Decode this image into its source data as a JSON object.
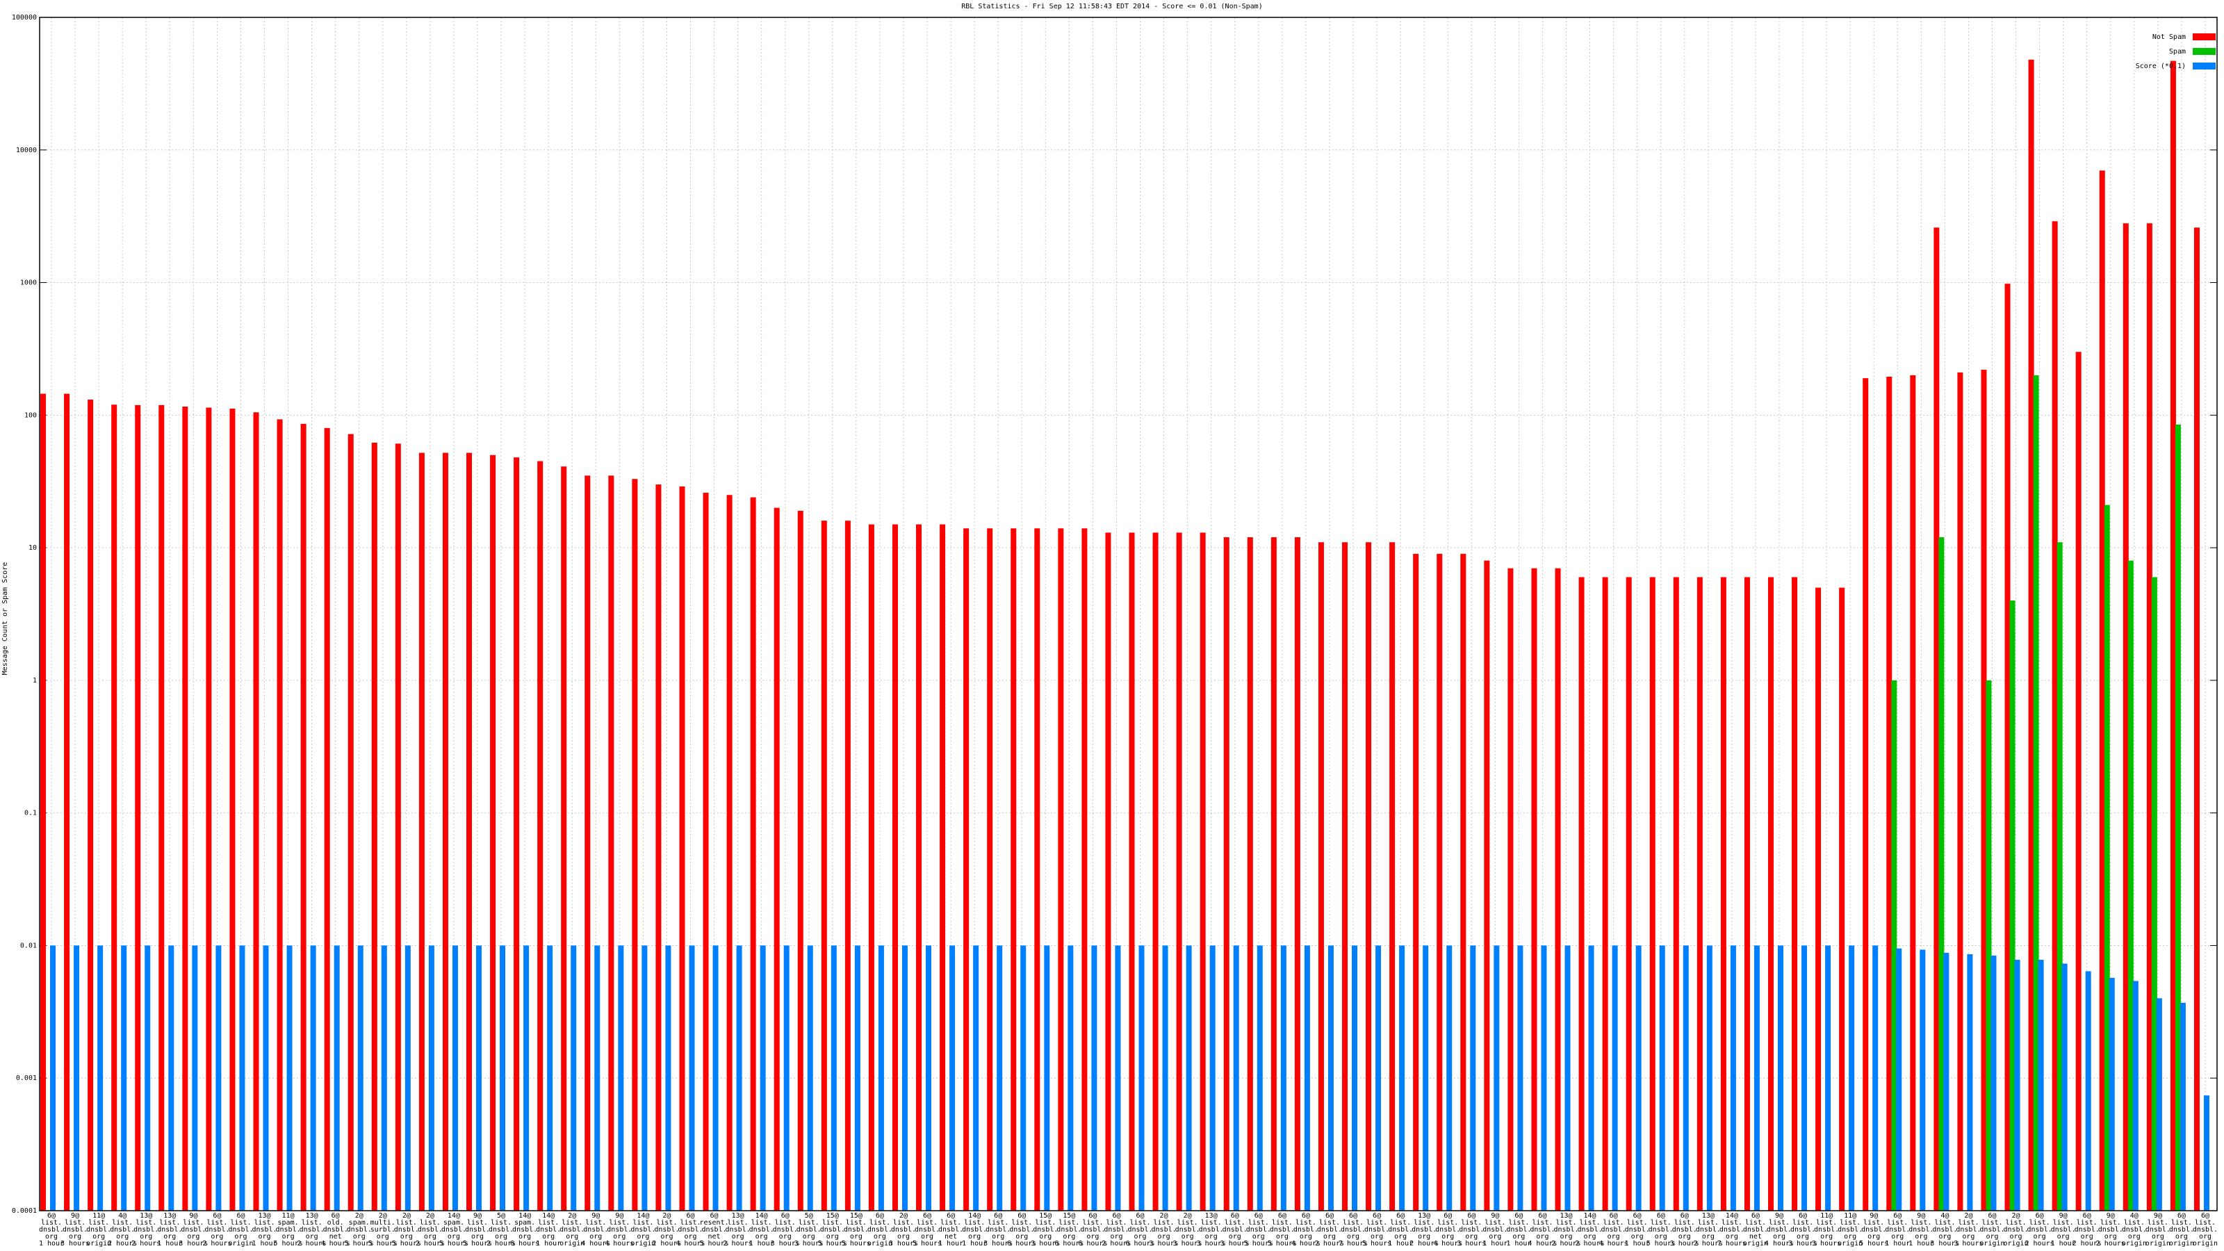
{
  "chart_data": {
    "type": "bar",
    "title": "RBL Statistics - Fri Sep 12 11:58:43 EDT 2014 - Score <= 0.01 (Non-Spam)",
    "y_label": "Message Count or Spam Score",
    "log_scale": true,
    "grid": true,
    "legend": "top-right",
    "ylim": [
      0.0001,
      100000
    ],
    "yticks": [
      0.0001,
      0.001,
      0.01,
      0.1,
      1,
      10,
      100,
      1000,
      10000,
      100000
    ],
    "categories": [
      "6@\nlist.\ndnsbl.\norg\n1 hour",
      "9@\nlist.\ndnsbl.\norg\n3 hours",
      "11@\nlist.\ndnsbl.\norg\norigin",
      "4@\nlist.\ndnsbl.\norg\n2 hours",
      "13@\nlist.\ndnsbl.\norg\n2 hours",
      "13@\nlist.\ndnsbl.\norg\n1 hour",
      "9@\nlist.\ndnsbl.\norg\n3 hours",
      "6@\nlist.\ndnsbl.\norg\n2 hours",
      "6@\nlist.\ndnsbl.\norg\norigin",
      "13@\nlist.\ndnsbl.\norg\n1 hour",
      "11@\nspam.\ndnsbl.\norg\n5 hours",
      "13@\nlist.\ndnsbl.\norg\n2 hours",
      "6@\nold.\ndnsbl.\nnet\n4 hours",
      "2@\nspam.\ndnsbl.\norg\n5 hours",
      "2@\nmulti.\nsurbl.\norg\n5 hours",
      "2@\nlist.\ndnsbl.\norg\n5 hours",
      "2@\nlist.\ndnsbl.\norg\n2 hours",
      "14@\nspam.\ndnsbl.\norg\n5 hours",
      "9@\nlist.\ndnsbl.\norg\n5 hours",
      "5@\nlist.\ndnsbl.\norg\n2 hours",
      "14@\nspam.\ndnsbl.\norg\n6 hours",
      "14@\nlist.\ndnsbl.\norg\n1 hour",
      "2@\nlist.\ndnsbl.\norg\norigin",
      "9@\nlist.\ndnsbl.\norg\n4 hours",
      "9@\nlist.\ndnsbl.\norg\n4 hours",
      "14@\nlist.\ndnsbl.\norg\norigin",
      "2@\nlist.\ndnsbl.\norg\n2 hours",
      "6@\nlist.\ndnsbl.\norg\n4 hours",
      "6@\nresent.\ndnsbl.\nnet\n5 hours",
      "13@\nlist.\ndnsbl.\norg\n2 hours",
      "14@\nlist.\ndnsbl.\norg\n1 hour",
      "6@\nlist.\ndnsbl.\norg\n3 hours",
      "5@\nlist.\ndnsbl.\norg\n3 hours",
      "15@\nlist.\ndnsbl.\norg\n5 hours",
      "15@\nlist.\ndnsbl.\norg\n5 hours",
      "6@\nlist.\ndnsbl.\norg\norigin",
      "2@\nlist.\ndnsbl.\norg\n3 hours",
      "6@\nlist.\ndnsbl.\norg\n5 hours",
      "6@\nlist.\ndnsbl.\nnet\n1 hour",
      "14@\nlist.\ndnsbl.\norg\n1 hour",
      "6@\nlist.\ndnsbl.\norg\n3 hours",
      "6@\nlist.\ndnsbl.\norg\n6 hours",
      "15@\nlist.\ndnsbl.\norg\n3 hours",
      "15@\nlist.\ndnsbl.\norg\n6 hours",
      "6@\nlist.\ndnsbl.\norg\n6 hours",
      "6@\nlist.\ndnsbl.\norg\n2 hours",
      "6@\nlist.\ndnsbl.\norg\n6 hours",
      "2@\nlist.\ndnsbl.\norg\n3 hours",
      "2@\nlist.\ndnsbl.\norg\n3 hours",
      "13@\nlist.\ndnsbl.\norg\n3 hours",
      "6@\nlist.\ndnsbl.\norg\n3 hours",
      "6@\nlist.\ndnsbl.\norg\n5 hours",
      "6@\nlist.\ndnsbl.\norg\n5 hours",
      "6@\nlist.\ndnsbl.\norg\n4 hours",
      "6@\nlist.\ndnsbl.\norg\n2 hours",
      "6@\nlist.\ndnsbl.\norg\n7 hours",
      "6@\nlist.\ndnsbl.\norg\n5 hours",
      "6@\nlist.\ndnsbl.\norg\n1 hour",
      "13@\nlist.\ndnsbl.\norg\n2 hours",
      "6@\nlist.\ndnsbl.\norg\n4 hours",
      "6@\nlist.\ndnsbl.\norg\n3 hours",
      "9@\nlist.\ndnsbl.\norg\n1 hour",
      "6@\nlist.\ndnsbl.\norg\n1 hour",
      "6@\nlist.\ndnsbl.\norg\n4 hours",
      "13@\nlist.\ndnsbl.\norg\n2 hours",
      "14@\nlist.\ndnsbl.\norg\n2 hours",
      "6@\nlist.\ndnsbl.\norg\n4 hours",
      "6@\nlist.\ndnsbl.\norg\n1 hour",
      "6@\nlist.\ndnsbl.\norg\n5 hours",
      "6@\nlist.\ndnsbl.\norg\n3 hours",
      "13@\nlist.\ndnsbl.\norg\n2 hours",
      "14@\nlist.\ndnsbl.\norg\n7 hours",
      "6@\nlist.\ndnsbl.\nnet\norigin",
      "9@\nlist.\ndnsbl.\norg\n4 hours",
      "6@\nlist.\ndnsbl.\norg\n3 hours",
      "11@\nlist.\ndnsbl.\norg\n3 hours",
      "11@\nlist.\ndnsbl.\norg\norigin",
      "9@\nlist.\ndnsbl.\norg\n5 hours",
      "6@\nlist.\ndnsbl.\norg\n1 hour",
      "9@\nlist.\ndnsbl.\norg\n1 hour",
      "4@\nlist.\ndnsbl.\norg\n3 hours",
      "2@\nlist.\ndnsbl.\norg\n3 hours",
      "6@\nlist.\ndnsbl.\norg\norigin",
      "2@\nlist.\ndnsbl.\norg\norigin",
      "6@\nlist.\ndnsbl.\norg\n2 hours",
      "9@\nlist.\ndnsbl.\norg\n1 hour",
      "6@\nlist.\ndnsbl.\norg\n2 hours",
      "9@\nlist.\ndnsbl.\norg\n2 hours",
      "4@\nlist.\ndnsbl.\norg\norigin",
      "9@\nlist.\ndnsbl.\norg\norigin",
      "6@\nlist.\ndnsbl.\norg\norigin",
      "6@\nlist.\ndnsbl.\norg\norigin"
    ],
    "series": [
      {
        "name": "Not Spam",
        "color": "#ff0000",
        "values": [
          145,
          145,
          131,
          120,
          119,
          119,
          116,
          114,
          112,
          105,
          93,
          86,
          80,
          72,
          62,
          61,
          52,
          52,
          52,
          50,
          48,
          45,
          41,
          35,
          35,
          33,
          30,
          29,
          26,
          25,
          24,
          20,
          19,
          16,
          16,
          15,
          15,
          15,
          15,
          14,
          14,
          14,
          14,
          14,
          14,
          13,
          13,
          13,
          13,
          13,
          12,
          12,
          12,
          12,
          11,
          11,
          11,
          11,
          9,
          9,
          9,
          8,
          7,
          7,
          7,
          6,
          6,
          6,
          6,
          6,
          6,
          6,
          6,
          6,
          6,
          5,
          5,
          190,
          195,
          200,
          2600,
          210,
          220,
          980,
          48000,
          2900,
          300,
          7000,
          2800,
          2800,
          47000,
          2600
        ]
      },
      {
        "name": "Spam",
        "color": "#00c000",
        "values": [
          null,
          null,
          null,
          null,
          null,
          null,
          null,
          null,
          null,
          null,
          null,
          null,
          null,
          null,
          null,
          null,
          null,
          null,
          null,
          null,
          null,
          null,
          null,
          null,
          null,
          null,
          null,
          null,
          null,
          null,
          null,
          null,
          null,
          null,
          null,
          null,
          null,
          null,
          null,
          null,
          null,
          null,
          null,
          null,
          null,
          null,
          null,
          null,
          null,
          null,
          null,
          null,
          null,
          null,
          null,
          null,
          null,
          null,
          null,
          null,
          null,
          null,
          null,
          null,
          null,
          null,
          null,
          null,
          null,
          null,
          null,
          null,
          null,
          null,
          null,
          null,
          null,
          null,
          1,
          null,
          12,
          null,
          1,
          4,
          200,
          11,
          null,
          21,
          8,
          6,
          85,
          null
        ]
      },
      {
        "name": "Score (*0.1)",
        "color": "#0080ff",
        "values": [
          0.01,
          0.01,
          0.01,
          0.01,
          0.01,
          0.01,
          0.01,
          0.01,
          0.01,
          0.01,
          0.01,
          0.01,
          0.01,
          0.01,
          0.01,
          0.01,
          0.01,
          0.01,
          0.01,
          0.01,
          0.01,
          0.01,
          0.01,
          0.01,
          0.01,
          0.01,
          0.01,
          0.01,
          0.01,
          0.01,
          0.01,
          0.01,
          0.01,
          0.01,
          0.01,
          0.01,
          0.01,
          0.01,
          0.01,
          0.01,
          0.01,
          0.01,
          0.01,
          0.01,
          0.01,
          0.01,
          0.01,
          0.01,
          0.01,
          0.01,
          0.01,
          0.01,
          0.01,
          0.01,
          0.01,
          0.01,
          0.01,
          0.01,
          0.01,
          0.01,
          0.01,
          0.01,
          0.01,
          0.01,
          0.01,
          0.01,
          0.01,
          0.01,
          0.01,
          0.01,
          0.01,
          0.01,
          0.01,
          0.01,
          0.01,
          0.01,
          0.01,
          0.01,
          0.0095,
          0.0093,
          0.0088,
          0.0086,
          0.0084,
          0.0078,
          0.0078,
          0.0073,
          0.0064,
          0.0057,
          0.0054,
          0.004,
          0.0037,
          0.00074
        ]
      }
    ]
  }
}
